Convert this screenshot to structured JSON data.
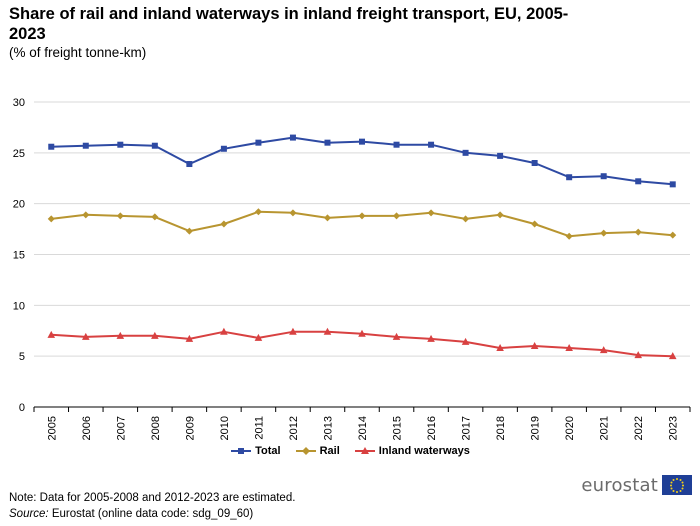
{
  "header": {
    "title": "Share of rail and inland waterways in inland freight transport, EU, 2005-2023",
    "subtitle": "(% of freight tonne-km)"
  },
  "footer": {
    "note": "Note: Data for 2005-2008 and 2012-2023 are estimated.",
    "source_label": "Source:",
    "source_text": " Eurostat (online data code: sdg_09_60)",
    "logo_text": "eurostat"
  },
  "colors": {
    "total": "#2e4aa3",
    "rail": "#b89530",
    "inland": "#d84141",
    "grid": "#d9d9d9",
    "axis": "#000000"
  },
  "chart_data": {
    "type": "line",
    "title": "Share of rail and inland waterways in inland freight transport, EU, 2005-2023",
    "ylabel": "% of freight tonne-km",
    "xlabel": "",
    "ylim": [
      0,
      30
    ],
    "yticks": [
      0,
      5,
      10,
      15,
      20,
      25,
      30
    ],
    "grid": true,
    "legend_position": "bottom",
    "categories": [
      "2005",
      "2006",
      "2007",
      "2008",
      "2009",
      "2010",
      "2011",
      "2012",
      "2013",
      "2014",
      "2015",
      "2016",
      "2017",
      "2018",
      "2019",
      "2020",
      "2021",
      "2022",
      "2023"
    ],
    "series": [
      {
        "key": "total",
        "name": "Total",
        "marker": "square",
        "values": [
          25.6,
          25.7,
          25.8,
          25.7,
          23.9,
          25.4,
          26.0,
          26.5,
          26.0,
          26.1,
          25.8,
          25.8,
          25.0,
          24.7,
          24.0,
          22.6,
          22.7,
          22.2,
          21.9
        ]
      },
      {
        "key": "rail",
        "name": "Rail",
        "marker": "diamond",
        "values": [
          18.5,
          18.9,
          18.8,
          18.7,
          17.3,
          18.0,
          19.2,
          19.1,
          18.6,
          18.8,
          18.8,
          19.1,
          18.5,
          18.9,
          18.0,
          16.8,
          17.1,
          17.2,
          16.9
        ]
      },
      {
        "key": "inland",
        "name": "Inland waterways",
        "marker": "triangle",
        "values": [
          7.1,
          6.9,
          7.0,
          7.0,
          6.7,
          7.4,
          6.8,
          7.4,
          7.4,
          7.2,
          6.9,
          6.7,
          6.4,
          5.8,
          6.0,
          5.8,
          5.6,
          5.1,
          5.0
        ]
      }
    ]
  }
}
